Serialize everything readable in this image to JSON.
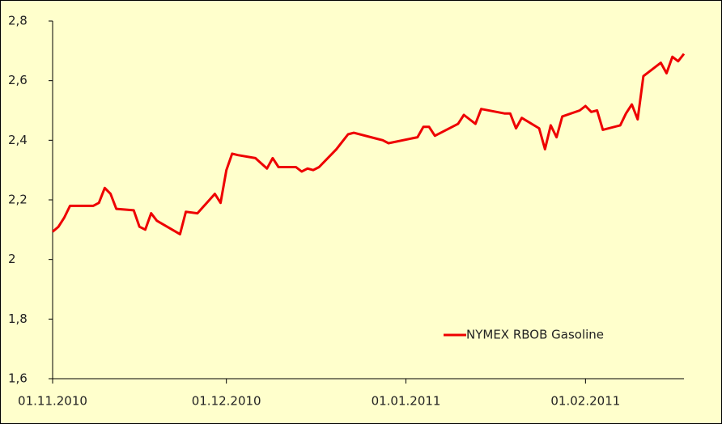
{
  "chart_data": {
    "type": "line",
    "x": [
      "2010-11-01",
      "2010-11-02",
      "2010-11-03",
      "2010-11-04",
      "2010-11-05",
      "2010-11-08",
      "2010-11-09",
      "2010-11-10",
      "2010-11-11",
      "2010-11-12",
      "2010-11-15",
      "2010-11-16",
      "2010-11-17",
      "2010-11-18",
      "2010-11-19",
      "2010-11-23",
      "2010-11-24",
      "2010-11-26",
      "2010-11-29",
      "2010-11-30",
      "2010-12-01",
      "2010-12-02",
      "2010-12-03",
      "2010-12-06",
      "2010-12-08",
      "2010-12-09",
      "2010-12-10",
      "2010-12-13",
      "2010-12-14",
      "2010-12-15",
      "2010-12-16",
      "2010-12-17",
      "2010-12-20",
      "2010-12-21",
      "2010-12-22",
      "2010-12-23",
      "2010-12-27",
      "2010-12-28",
      "2010-12-29",
      "2011-01-03",
      "2011-01-04",
      "2011-01-05",
      "2011-01-06",
      "2011-01-10",
      "2011-01-11",
      "2011-01-12",
      "2011-01-13",
      "2011-01-14",
      "2011-01-18",
      "2011-01-19",
      "2011-01-20",
      "2011-01-21",
      "2011-01-24",
      "2011-01-25",
      "2011-01-26",
      "2011-01-27",
      "2011-01-28",
      "2011-01-31",
      "2011-02-01",
      "2011-02-02",
      "2011-02-03",
      "2011-02-04",
      "2011-02-07",
      "2011-02-08",
      "2011-02-09",
      "2011-02-10",
      "2011-02-11",
      "2011-02-14",
      "2011-02-15",
      "2011-02-16",
      "2011-02-17",
      "2011-02-18"
    ],
    "series": [
      {
        "name": "NYMEX RBOB Gasoline",
        "color": "#ee0000",
        "values": [
          2.093,
          2.11,
          2.14,
          2.18,
          2.18,
          2.18,
          2.19,
          2.24,
          2.22,
          2.17,
          2.165,
          2.11,
          2.1,
          2.155,
          2.13,
          2.085,
          2.16,
          2.155,
          2.22,
          2.19,
          2.3,
          2.355,
          2.35,
          2.34,
          2.305,
          2.34,
          2.31,
          2.31,
          2.295,
          2.305,
          2.3,
          2.31,
          2.37,
          2.395,
          2.42,
          2.425,
          2.405,
          2.4,
          2.39,
          2.41,
          2.445,
          2.445,
          2.415,
          2.455,
          2.485,
          2.47,
          2.455,
          2.505,
          2.49,
          2.49,
          2.44,
          2.475,
          2.44,
          2.37,
          2.45,
          2.41,
          2.48,
          2.5,
          2.515,
          2.495,
          2.5,
          2.435,
          2.45,
          2.49,
          2.52,
          2.47,
          2.615,
          2.66,
          2.625,
          2.68,
          2.665,
          2.69
        ]
      }
    ],
    "xlim": [
      "2010-11-01",
      "2011-02-18"
    ],
    "xticks": [
      {
        "value": "2010-11-01",
        "label": "01.11.2010"
      },
      {
        "value": "2010-12-01",
        "label": "01.12.2010"
      },
      {
        "value": "2011-01-01",
        "label": "01.01.2011"
      },
      {
        "value": "2011-02-01",
        "label": "01.02.2011"
      }
    ],
    "ylim": [
      1.6,
      2.8
    ],
    "yticks": [
      {
        "value": 1.6,
        "label": "1,6"
      },
      {
        "value": 1.8,
        "label": "1,8"
      },
      2,
      {
        "value": 2.2,
        "label": "2,2"
      },
      {
        "value": 2.4,
        "label": "2,4"
      },
      {
        "value": 2.6,
        "label": "2,6"
      },
      {
        "value": 2.8,
        "label": "2,8"
      }
    ],
    "grid": false,
    "legend": "lower right"
  }
}
